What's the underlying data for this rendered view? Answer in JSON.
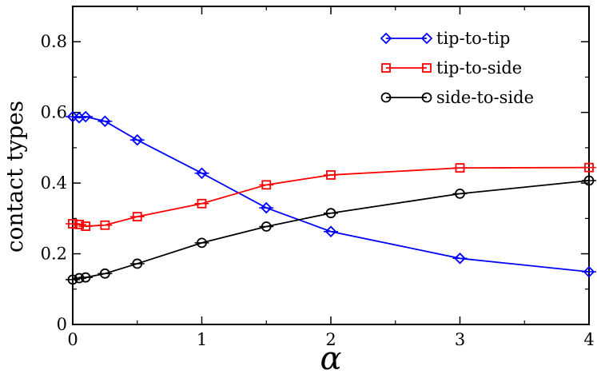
{
  "chart_data": {
    "type": "line",
    "xlabel": "α",
    "ylabel": "contact types",
    "xlim": [
      0,
      4
    ],
    "ylim": [
      0,
      0.9
    ],
    "x_ticks": [
      0,
      1,
      2,
      3,
      4
    ],
    "y_ticks": [
      0,
      0.2,
      0.4,
      0.6,
      0.8
    ],
    "x_tick_labels": [
      "0",
      "1",
      "2",
      "3",
      "4"
    ],
    "y_tick_labels": [
      "0",
      "0.2",
      "0.4",
      "0.6",
      "0.8"
    ],
    "grid": false,
    "legend_position": "top-right",
    "x": [
      0.0,
      0.05,
      0.1,
      0.25,
      0.5,
      1.0,
      1.5,
      2.0,
      3.0,
      4.0
    ],
    "series": [
      {
        "name": "tip-to-tip",
        "color": "#0000ff",
        "marker": "diamond",
        "values": [
          0.588,
          0.585,
          0.588,
          0.575,
          0.522,
          0.428,
          0.33,
          0.263,
          0.187,
          0.149
        ]
      },
      {
        "name": "tip-to-side",
        "color": "#ff0000",
        "marker": "square",
        "values": [
          0.285,
          0.283,
          0.278,
          0.281,
          0.305,
          0.342,
          0.395,
          0.423,
          0.443,
          0.444
        ]
      },
      {
        "name": "side-to-side",
        "color": "#000000",
        "marker": "circle",
        "values": [
          0.127,
          0.131,
          0.133,
          0.144,
          0.172,
          0.231,
          0.277,
          0.315,
          0.37,
          0.407
        ]
      }
    ]
  }
}
